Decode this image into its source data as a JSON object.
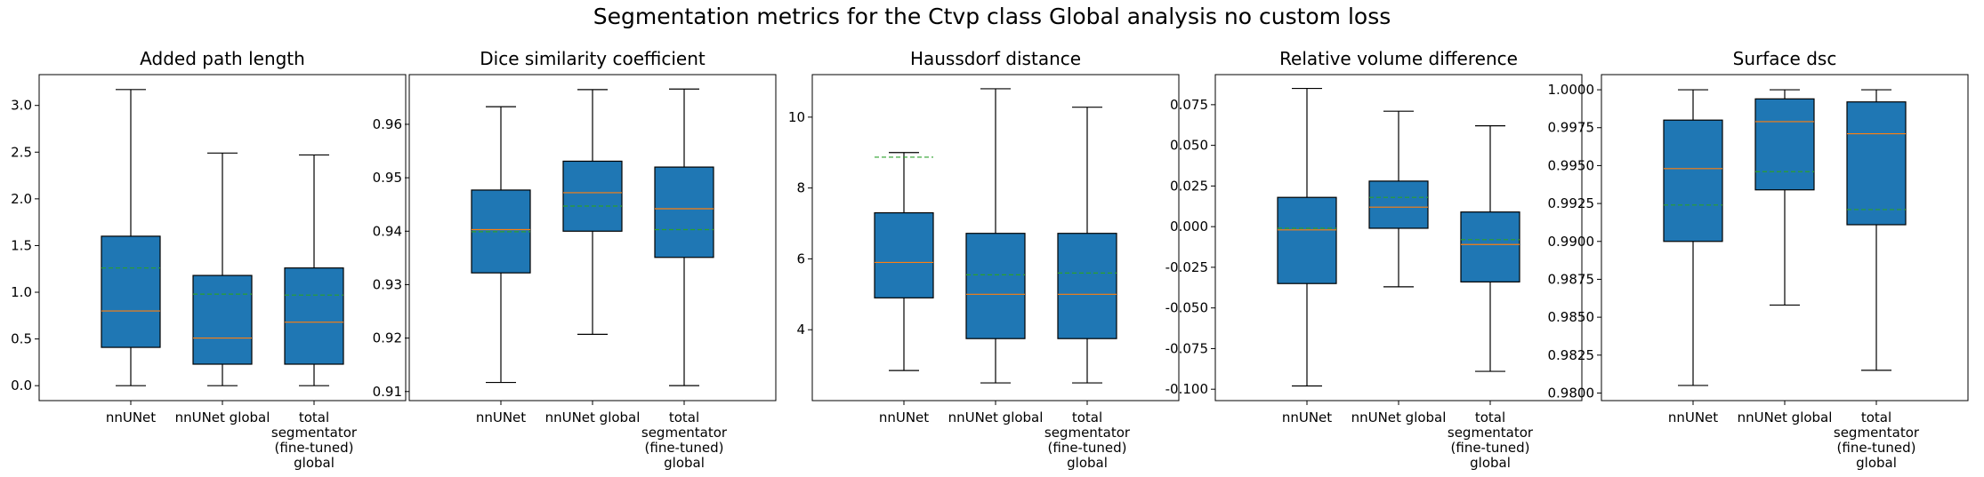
{
  "figure": {
    "title": "Segmentation metrics for the Ctvp class Global analysis no custom loss"
  },
  "colors": {
    "box_fill": "#1f77b4",
    "median": "#ff7f0e",
    "mean": "#2ca02c",
    "edge": "#000000"
  },
  "chart_data": [
    {
      "type": "box",
      "title": "Added path length",
      "categories": [
        "nnUNet",
        "nnUNet global",
        "total\nsegmentator\n(fine-tuned)\nglobal"
      ],
      "ylim": [
        -0.16,
        3.33
      ],
      "yticks": [
        0.0,
        0.5,
        1.0,
        1.5,
        2.0,
        2.5,
        3.0
      ],
      "ytick_labels": [
        "0.0",
        "0.5",
        "1.0",
        "1.5",
        "2.0",
        "2.5",
        "3.0"
      ],
      "boxes": [
        {
          "whislo": 0.0,
          "q1": 0.41,
          "median": 0.8,
          "q3": 1.6,
          "whishi": 3.17,
          "mean": 1.26
        },
        {
          "whislo": 0.0,
          "q1": 0.23,
          "median": 0.51,
          "q3": 1.18,
          "whishi": 2.49,
          "mean": 0.98
        },
        {
          "whislo": 0.0,
          "q1": 0.23,
          "median": 0.68,
          "q3": 1.26,
          "whishi": 2.47,
          "mean": 0.97
        }
      ]
    },
    {
      "type": "box",
      "title": "Dice similarity coefficient",
      "categories": [
        "nnUNet",
        "nnUNet global",
        "total\nsegmentator\n(fine-tuned)\nglobal"
      ],
      "ylim": [
        0.9083,
        0.9693
      ],
      "yticks": [
        0.91,
        0.92,
        0.93,
        0.94,
        0.95,
        0.96
      ],
      "ytick_labels": [
        "0.91",
        "0.92",
        "0.93",
        "0.94",
        "0.95",
        "0.96"
      ],
      "boxes": [
        {
          "whislo": 0.9117,
          "q1": 0.9322,
          "median": 0.9403,
          "q3": 0.9477,
          "whishi": 0.9633,
          "mean": 0.9399
        },
        {
          "whislo": 0.9207,
          "q1": 0.94,
          "median": 0.9472,
          "q3": 0.9531,
          "whishi": 0.9665,
          "mean": 0.9447
        },
        {
          "whislo": 0.9111,
          "q1": 0.9351,
          "median": 0.9442,
          "q3": 0.952,
          "whishi": 0.9666,
          "mean": 0.9403
        }
      ]
    },
    {
      "type": "box",
      "title": "Haussdorf distance",
      "categories": [
        "nnUNet",
        "nnUNet global",
        "total\nsegmentator\n(fine-tuned)\nglobal"
      ],
      "ylim": [
        2.0,
        11.2
      ],
      "yticks": [
        4,
        6,
        8,
        10
      ],
      "ytick_labels": [
        "4",
        "6",
        "8",
        "10"
      ],
      "boxes": [
        {
          "whislo": 2.85,
          "q1": 4.9,
          "median": 5.9,
          "q3": 7.3,
          "whishi": 9.0,
          "mean": 8.87
        },
        {
          "whislo": 2.5,
          "q1": 3.75,
          "median": 5.0,
          "q3": 6.72,
          "whishi": 10.8,
          "mean": 5.55
        },
        {
          "whislo": 2.5,
          "q1": 3.75,
          "median": 5.0,
          "q3": 6.72,
          "whishi": 10.28,
          "mean": 5.6
        }
      ]
    },
    {
      "type": "box",
      "title": "Relative volume difference",
      "categories": [
        "nnUNet",
        "nnUNet global",
        "total\nsegmentator\n(fine-tuned)\nglobal"
      ],
      "ylim": [
        -0.107,
        0.0935
      ],
      "yticks": [
        -0.1,
        -0.075,
        -0.05,
        -0.025,
        0.0,
        0.025,
        0.05,
        0.075
      ],
      "ytick_labels": [
        "-0.100",
        "-0.075",
        "-0.050",
        "-0.025",
        "0.000",
        "0.025",
        "0.050",
        "0.075"
      ],
      "boxes": [
        {
          "whislo": -0.098,
          "q1": -0.035,
          "median": -0.002,
          "q3": 0.018,
          "whishi": 0.085,
          "mean": -0.001
        },
        {
          "whislo": -0.037,
          "q1": -0.001,
          "median": 0.012,
          "q3": 0.028,
          "whishi": 0.071,
          "mean": 0.018
        },
        {
          "whislo": -0.089,
          "q1": -0.034,
          "median": -0.011,
          "q3": 0.009,
          "whishi": 0.062,
          "mean": -0.008
        }
      ]
    },
    {
      "type": "box",
      "title": "Surface dsc",
      "categories": [
        "nnUNet",
        "nnUNet global",
        "total\nsegmentator\n(fine-tuned)\nglobal"
      ],
      "ylim": [
        0.9795,
        1.001
      ],
      "yticks": [
        0.98,
        0.9825,
        0.985,
        0.9875,
        0.99,
        0.9925,
        0.995,
        0.9975,
        1.0
      ],
      "ytick_labels": [
        "0.9800",
        "0.9825",
        "0.9850",
        "0.9875",
        "0.9900",
        "0.9925",
        "0.9950",
        "0.9975",
        "1.0000"
      ],
      "boxes": [
        {
          "whislo": 0.9805,
          "q1": 0.99,
          "median": 0.9948,
          "q3": 0.998,
          "whishi": 1.0,
          "mean": 0.9924
        },
        {
          "whislo": 0.9858,
          "q1": 0.9934,
          "median": 0.9979,
          "q3": 0.9994,
          "whishi": 1.0,
          "mean": 0.9946
        },
        {
          "whislo": 0.9815,
          "q1": 0.9911,
          "median": 0.9971,
          "q3": 0.9992,
          "whishi": 1.0,
          "mean": 0.9921
        }
      ]
    }
  ]
}
